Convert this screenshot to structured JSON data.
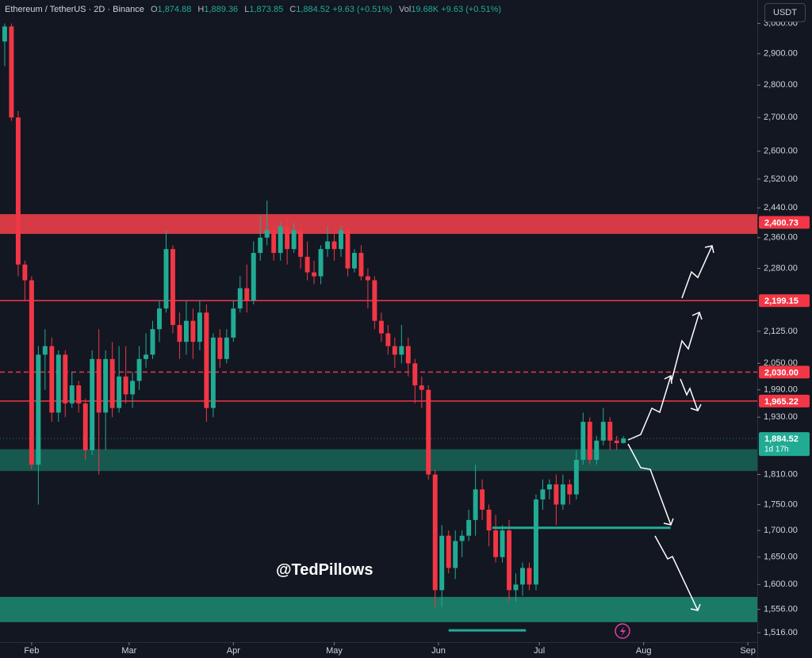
{
  "header": {
    "symbol": "Ethereum / TetherUS · 2D · Binance",
    "open_key": "O",
    "open": "1,874.88",
    "high_key": "H",
    "high": "1,889.36",
    "low_key": "L",
    "low": "1,873.85",
    "close_key": "C",
    "close": "1,884.52",
    "change": "+9.63 (+0.51%)",
    "vol_key": "Vol",
    "vol": "19.68K",
    "vol_change": "+9.63 (+0.51%)",
    "currency": "USDT",
    "watermark": "@TedPillows"
  },
  "chart_data": {
    "type": "candlestick",
    "log_scale": true,
    "up_color": "#22ab94",
    "down_color": "#f23645",
    "x": [
      23,
      25,
      27,
      29,
      31,
      33,
      35,
      37,
      39,
      41,
      43,
      45,
      47,
      49,
      51,
      53,
      55,
      57,
      59,
      61,
      63,
      65,
      67,
      69,
      71,
      73,
      75,
      77,
      79,
      81,
      83,
      85,
      87,
      89,
      91,
      93,
      95,
      97,
      99,
      101,
      103,
      105,
      107,
      109,
      111,
      113,
      115,
      117,
      119,
      121,
      123,
      125,
      127,
      129,
      131,
      133,
      135,
      137,
      139,
      141,
      143,
      145,
      147,
      149,
      151,
      153,
      155,
      157,
      159,
      161,
      163,
      165,
      167,
      169,
      171,
      173,
      175,
      177,
      179,
      181,
      183,
      185,
      187,
      189,
      191,
      193,
      195,
      197,
      199,
      201,
      203,
      205,
      207
    ],
    "open": [
      2940,
      2990,
      2700,
      2290,
      2250,
      1830,
      2070,
      2090,
      1940,
      2070,
      1960,
      2000,
      1960,
      1860,
      2060,
      1940,
      2060,
      1950,
      2020,
      1980,
      2010,
      2060,
      2070,
      2130,
      2180,
      2330,
      2140,
      2100,
      2150,
      2100,
      2170,
      1950,
      2110,
      2060,
      2110,
      2180,
      2230,
      2200,
      2320,
      2360,
      2380,
      2320,
      2390,
      2330,
      2380,
      2310,
      2270,
      2260,
      2330,
      2350,
      2330,
      2380,
      2280,
      2320,
      2260,
      2250,
      2150,
      2120,
      2090,
      2070,
      2090,
      2050,
      2000,
      1990,
      1810,
      1590,
      1690,
      1630,
      1680,
      1690,
      1720,
      1780,
      1740,
      1700,
      1650,
      1700,
      1590,
      1600,
      1630,
      1600,
      1760,
      1780,
      1790,
      1750,
      1790,
      1770,
      1840,
      1920,
      1840,
      1880,
      1920,
      1880,
      1874.88
    ],
    "high": [
      3000,
      3000,
      2720,
      2300,
      2260,
      2090,
      2130,
      2110,
      2080,
      2080,
      2030,
      2010,
      1970,
      2080,
      2130,
      2080,
      2100,
      2090,
      2090,
      2030,
      2090,
      2120,
      2150,
      2200,
      2380,
      2340,
      2170,
      2200,
      2180,
      2200,
      2190,
      2120,
      2130,
      2130,
      2200,
      2260,
      2290,
      2350,
      2420,
      2460,
      2420,
      2400,
      2420,
      2400,
      2400,
      2350,
      2300,
      2340,
      2390,
      2380,
      2390,
      2390,
      2330,
      2340,
      2280,
      2260,
      2170,
      2140,
      2110,
      2140,
      2110,
      2060,
      2020,
      2000,
      1820,
      1710,
      1700,
      1700,
      1700,
      1740,
      1830,
      1800,
      1750,
      1730,
      1710,
      1720,
      1620,
      1640,
      1640,
      1770,
      1800,
      1800,
      1810,
      1810,
      1800,
      1860,
      1940,
      1930,
      1890,
      1950,
      1930,
      1890,
      1889.36
    ],
    "low": [
      2860,
      2690,
      2260,
      2200,
      1820,
      1750,
      1990,
      1920,
      1920,
      1930,
      1950,
      1940,
      1840,
      1850,
      1810,
      1860,
      1930,
      1940,
      1960,
      1950,
      1990,
      2040,
      2060,
      2100,
      2170,
      2120,
      2060,
      2070,
      2060,
      2080,
      1920,
      1930,
      2040,
      2050,
      2100,
      2170,
      2170,
      2190,
      2300,
      2340,
      2300,
      2300,
      2290,
      2320,
      2280,
      2250,
      2240,
      2240,
      2310,
      2300,
      2310,
      2260,
      2270,
      2250,
      2180,
      2130,
      2100,
      2070,
      2040,
      2050,
      2020,
      1960,
      1950,
      1800,
      1560,
      1560,
      1620,
      1610,
      1650,
      1680,
      1690,
      1720,
      1670,
      1640,
      1640,
      1570,
      1570,
      1580,
      1590,
      1590,
      1740,
      1760,
      1710,
      1740,
      1750,
      1760,
      1830,
      1830,
      1830,
      1870,
      1860,
      1860,
      1873.85
    ],
    "close": [
      2990,
      2700,
      2290,
      2250,
      1830,
      2070,
      2090,
      1940,
      2070,
      1960,
      2000,
      1960,
      1860,
      2060,
      1940,
      2060,
      1950,
      2020,
      1980,
      2010,
      2060,
      2070,
      2130,
      2180,
      2330,
      2140,
      2100,
      2150,
      2100,
      2170,
      1950,
      2110,
      2060,
      2110,
      2180,
      2230,
      2200,
      2320,
      2360,
      2380,
      2320,
      2390,
      2330,
      2380,
      2310,
      2270,
      2260,
      2330,
      2350,
      2330,
      2380,
      2280,
      2320,
      2260,
      2250,
      2150,
      2120,
      2090,
      2070,
      2090,
      2050,
      2000,
      1990,
      1810,
      1590,
      1690,
      1630,
      1680,
      1690,
      1720,
      1780,
      1740,
      1700,
      1650,
      1700,
      1590,
      1600,
      1630,
      1600,
      1760,
      1780,
      1790,
      1750,
      1790,
      1770,
      1840,
      1920,
      1840,
      1880,
      1920,
      1880,
      1874.88,
      1884.52
    ],
    "xlim": [
      21.6,
      246.8
    ],
    "xticks": [
      {
        "value": 31,
        "label": "Feb"
      },
      {
        "value": 60,
        "label": "Mar"
      },
      {
        "value": 91,
        "label": "Apr"
      },
      {
        "value": 121,
        "label": "May"
      },
      {
        "value": 152,
        "label": "Jun"
      },
      {
        "value": 182,
        "label": "Jul"
      },
      {
        "value": 213,
        "label": "Aug"
      },
      {
        "value": 244,
        "label": "Sep"
      }
    ],
    "ylim": [
      1500,
      3080
    ],
    "yticks": [
      {
        "value": 3000,
        "label": "3,000.00"
      },
      {
        "value": 2900,
        "label": "2,900.00"
      },
      {
        "value": 2800,
        "label": "2,800.00"
      },
      {
        "value": 2700,
        "label": "2,700.00"
      },
      {
        "value": 2600,
        "label": "2,600.00"
      },
      {
        "value": 2520,
        "label": "2,520.00"
      },
      {
        "value": 2440,
        "label": "2,440.00"
      },
      {
        "value": 2360,
        "label": "2,360.00"
      },
      {
        "value": 2280,
        "label": "2,280.00"
      },
      {
        "value": 2125,
        "label": "2,125.00"
      },
      {
        "value": 2050,
        "label": "2,050.00"
      },
      {
        "value": 1990,
        "label": "1,990.00"
      },
      {
        "value": 1930,
        "label": "1,930.00"
      },
      {
        "value": 1810,
        "label": "1,810.00"
      },
      {
        "value": 1750,
        "label": "1,750.00"
      },
      {
        "value": 1700,
        "label": "1,700.00"
      },
      {
        "value": 1650,
        "label": "1,650.00"
      },
      {
        "value": 1600,
        "label": "1,600.00"
      },
      {
        "value": 1556,
        "label": "1,556.00"
      },
      {
        "value": 1516,
        "label": "1,516.00"
      }
    ],
    "zones": [
      {
        "low": 2370,
        "high": 2423,
        "color": "#d63a45"
      },
      {
        "low": 1817,
        "high": 1862,
        "color": "#17584f"
      },
      {
        "low": 1534,
        "high": 1578,
        "color": "#1b7a66"
      }
    ],
    "levels": [
      {
        "value": 2199.15,
        "color": "#f23645",
        "dashed": false
      },
      {
        "value": 2030,
        "color": "#f23645",
        "dashed": true
      },
      {
        "value": 1965.22,
        "color": "#f23645",
        "dashed": false
      }
    ],
    "supports": [
      {
        "value": 1705,
        "x": [
          168,
          221
        ],
        "color": "#22ab94"
      },
      {
        "value": 1520,
        "x": [
          155,
          178
        ],
        "color": "#22ab94"
      }
    ],
    "current": {
      "value": 1884.52,
      "label": "1,884.52",
      "countdown": "1d 17h",
      "color": "#22ab94"
    },
    "price_tags": [
      {
        "value": 2400.73,
        "label": "2,400.73",
        "color": "#f23645"
      },
      {
        "value": 2199.15,
        "label": "2,199.15",
        "color": "#f23645"
      },
      {
        "value": 2030,
        "label": "2,030.00",
        "color": "#f23645"
      },
      {
        "value": 1965.22,
        "label": "1,965.22",
        "color": "#f23645"
      }
    ]
  }
}
